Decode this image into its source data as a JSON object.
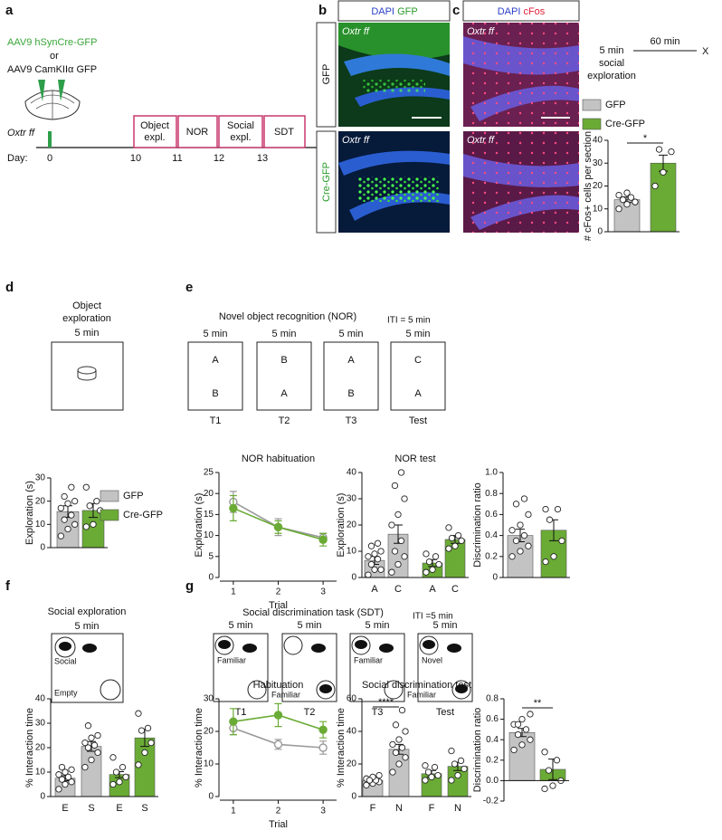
{
  "panels": {
    "letters": [
      "a",
      "b",
      "c",
      "d",
      "e",
      "f",
      "g"
    ],
    "a": {
      "virus1": "AAV9 hSynCre-GFP",
      "or": "or",
      "virus2": "AAV9 CamKIIα GFP",
      "mouse": "Oxtr ff",
      "day": "Day:",
      "days": [
        "0",
        "10",
        "11",
        "12",
        "13"
      ],
      "stages": [
        [
          "Object",
          "expl."
        ],
        [
          "NOR"
        ],
        [
          "Social",
          "expl."
        ],
        [
          "SDT"
        ]
      ]
    },
    "b": {
      "header": [
        "DAPI",
        "GFP"
      ],
      "rows": [
        "GFP",
        "Cre-GFP"
      ],
      "image_labels": [
        "Oxtr ff",
        "Oxtr ff"
      ]
    },
    "c": {
      "header": [
        "DAPI",
        "cFos"
      ],
      "image_labels": [
        "Oxtr ff",
        "Oxtr ff"
      ],
      "timeline": {
        "before": "5 min",
        "event": [
          "social",
          "exploration"
        ],
        "after": "60 min",
        "end": "X"
      }
    },
    "d": {
      "title": [
        "Object",
        "exploration"
      ],
      "time": "5 min"
    },
    "e": {
      "title": "Novel object recognition (NOR)",
      "iti": "ITI = 5 min",
      "trials": [
        {
          "time": "5 min",
          "objects": [
            "A",
            "B"
          ],
          "label": "T1"
        },
        {
          "time": "5 min",
          "objects": [
            "B",
            "A"
          ],
          "label": "T2"
        },
        {
          "time": "5 min",
          "objects": [
            "A",
            "B"
          ],
          "label": "T3"
        },
        {
          "time": "5 min",
          "objects": [
            "C",
            "A"
          ],
          "label": "Test"
        }
      ]
    },
    "f": {
      "title": "Social exploration",
      "time": "5 min",
      "labels": [
        "Social",
        "Empty"
      ]
    },
    "g": {
      "title": "Social discrimination task (SDT)",
      "iti": "ITI =5 min",
      "trials": [
        {
          "time": "5 min",
          "label": "T1",
          "tags": [
            "Familiar"
          ]
        },
        {
          "time": "5 min",
          "label": "T2",
          "tags": [
            "Familiar"
          ]
        },
        {
          "time": "5 min",
          "label": "T3",
          "tags": [
            "Familiar"
          ]
        },
        {
          "time": "5 min",
          "label": "Test",
          "tags": [
            "Novel",
            "Familiar"
          ]
        }
      ]
    }
  },
  "chart_data": [
    {
      "type": "bar",
      "ylabel": "# cFos+ cells per section",
      "ylim": [
        0,
        40
      ],
      "yticks": [
        0,
        10,
        20,
        30,
        40
      ],
      "legend": "top",
      "significance": "*",
      "series": [
        {
          "name": "GFP",
          "color": "#c3c3c3",
          "values": [
            14
          ],
          "errors": [
            1.2
          ],
          "points": [
            [
              10,
              12,
              13,
              14,
              15,
              16,
              17,
              13
            ]
          ]
        },
        {
          "name": "Cre-GFP",
          "color": "#6aab35",
          "values": [
            30
          ],
          "errors": [
            3.5
          ],
          "points": [
            [
              20,
              26,
              35,
              36
            ]
          ]
        }
      ]
    },
    {
      "type": "bar",
      "ylabel": "Exploration (s)",
      "ylim": [
        0,
        30
      ],
      "yticks": [
        0,
        10,
        20,
        30
      ],
      "legend": "right",
      "series": [
        {
          "name": "GFP",
          "color": "#c3c3c3",
          "values": [
            15.5
          ],
          "errors": [
            2.5
          ],
          "points": [
            [
              5,
              8,
              10,
              12,
              14,
              17,
              19,
              20,
              22,
              26
            ]
          ]
        },
        {
          "name": "Cre-GFP",
          "color": "#6aab35",
          "values": [
            16
          ],
          "errors": [
            3
          ],
          "points": [
            [
              9,
              10,
              16,
              18,
              20,
              26
            ]
          ]
        }
      ]
    },
    {
      "type": "line",
      "title": "NOR habituation",
      "ylabel": "Exploration (s)",
      "xlabel": "Trial",
      "x": [
        1,
        2,
        3
      ],
      "xlim": [
        0.7,
        3.3
      ],
      "xticks": [
        1,
        2,
        3
      ],
      "ylim": [
        0,
        25
      ],
      "yticks": [
        0,
        5,
        10,
        15,
        20,
        25
      ],
      "series": [
        {
          "color": "#9a9a9a",
          "marker": "open",
          "values": [
            18,
            12,
            9.5
          ],
          "errors": [
            2.5,
            2,
            1
          ]
        },
        {
          "color": "#6aab35",
          "marker": "filled",
          "values": [
            16.5,
            12,
            9
          ],
          "errors": [
            3,
            1.5,
            1.5
          ]
        }
      ]
    },
    {
      "type": "bar",
      "title": "NOR test",
      "ylabel": "Exploration (s)",
      "categories": [
        "A",
        "C"
      ],
      "ylim": [
        0,
        40
      ],
      "yticks": [
        0,
        10,
        20,
        30,
        40
      ],
      "series": [
        {
          "color": "#c3c3c3",
          "values": [
            6.5,
            16.5
          ],
          "errors": [
            1.5,
            3.5
          ],
          "points": [
            [
              1,
              3,
              3,
              5,
              7,
              8,
              9,
              10,
              12,
              13
            ],
            [
              2,
              5,
              8,
              10,
              14,
              20,
              24,
              30,
              35,
              40
            ]
          ]
        },
        {
          "color": "#6aab35",
          "values": [
            5.5,
            14.5
          ],
          "errors": [
            1.3,
            1.5
          ],
          "points": [
            [
              2,
              3,
              5,
              6,
              8,
              9
            ],
            [
              11,
              12,
              14,
              15,
              16,
              19
            ]
          ]
        }
      ]
    },
    {
      "type": "bar",
      "ylabel": "Discrimination ratio",
      "ylim": [
        0,
        1
      ],
      "yticks": [
        0,
        0.2,
        0.4,
        0.6,
        0.8,
        {
          "value": 1,
          "label": "1.0"
        }
      ],
      "series": [
        {
          "color": "#c3c3c3",
          "values": [
            0.4
          ],
          "errors": [
            0.06
          ],
          "points": [
            [
              0.2,
              0.25,
              0.3,
              0.35,
              0.4,
              0.45,
              0.5,
              0.6,
              0.7,
              0.75
            ]
          ]
        },
        {
          "color": "#6aab35",
          "values": [
            0.45
          ],
          "errors": [
            0.1
          ],
          "points": [
            [
              0.15,
              0.2,
              0.35,
              0.55,
              0.65,
              0.65
            ]
          ]
        }
      ]
    },
    {
      "type": "bar",
      "ylabel": "% Interaction time",
      "categories": [
        "E",
        "S"
      ],
      "ylim": [
        0,
        40
      ],
      "yticks": [
        0,
        10,
        20,
        30,
        40
      ],
      "series": [
        {
          "color": "#c3c3c3",
          "values": [
            7.5,
            20.5
          ],
          "errors": [
            1,
            2
          ],
          "points": [
            [
              3,
              5,
              6,
              7,
              8,
              9,
              10,
              11,
              12
            ],
            [
              12,
              15,
              18,
              20,
              21,
              22,
              24,
              25,
              29
            ]
          ]
        },
        {
          "color": "#6aab35",
          "values": [
            9,
            24
          ],
          "errors": [
            1.2,
            3.5
          ],
          "points": [
            [
              5,
              6,
              8,
              10,
              12,
              16
            ],
            [
              13,
              18,
              22,
              27,
              28,
              34
            ]
          ]
        }
      ]
    },
    {
      "type": "line",
      "title": "Habituation",
      "ylabel": "% Interaction time",
      "xlabel": "Trial",
      "x": [
        1,
        2,
        3
      ],
      "xlim": [
        0.7,
        3.3
      ],
      "xticks": [
        1,
        2,
        3
      ],
      "ylim": [
        0,
        30
      ],
      "yticks": [
        0,
        10,
        20,
        30
      ],
      "series": [
        {
          "color": "#9a9a9a",
          "marker": "open",
          "values": [
            21,
            16,
            15
          ],
          "errors": [
            2,
            1.5,
            2
          ]
        },
        {
          "color": "#6aab35",
          "marker": "filled",
          "values": [
            23,
            25,
            20.5
          ],
          "errors": [
            4,
            3.5,
            2.5
          ]
        }
      ]
    },
    {
      "type": "bar",
      "title": "Social discrimination test",
      "ylabel": "% Interaction time",
      "categories": [
        "F",
        "N"
      ],
      "ylim": [
        0,
        60
      ],
      "yticks": [
        0,
        20,
        40,
        60
      ],
      "significance": "****",
      "series": [
        {
          "color": "#c3c3c3",
          "values": [
            10,
            29
          ],
          "errors": [
            0.8,
            3
          ],
          "points": [
            [
              7,
              8,
              9,
              10,
              10,
              11,
              12,
              13,
              10
            ],
            [
              15,
              20,
              24,
              27,
              30,
              32,
              35,
              40,
              44,
              53
            ]
          ]
        },
        {
          "color": "#6aab35",
          "values": [
            14,
            18.5
          ],
          "errors": [
            2,
            2.5
          ],
          "points": [
            [
              10,
              12,
              13,
              15,
              18,
              19
            ],
            [
              10,
              13,
              17,
              20,
              22,
              28
            ]
          ]
        }
      ]
    },
    {
      "type": "bar",
      "ylabel": "Discrimination ratio",
      "ylim": [
        -0.2,
        0.8
      ],
      "yticks": [
        -0.2,
        {
          "value": 0,
          "label": "0.0"
        },
        0.2,
        0.4,
        0.6,
        0.8
      ],
      "significance": "**",
      "series": [
        {
          "color": "#c3c3c3",
          "values": [
            0.47
          ],
          "errors": [
            0.04
          ],
          "points": [
            [
              0.3,
              0.35,
              0.4,
              0.45,
              0.5,
              0.55,
              0.6,
              0.65,
              0.55
            ]
          ]
        },
        {
          "color": "#6aab35",
          "values": [
            0.11
          ],
          "errors": [
            0.1
          ],
          "points": [
            [
              -0.08,
              -0.05,
              0,
              0.1,
              0.2,
              0.28
            ]
          ]
        }
      ]
    }
  ]
}
